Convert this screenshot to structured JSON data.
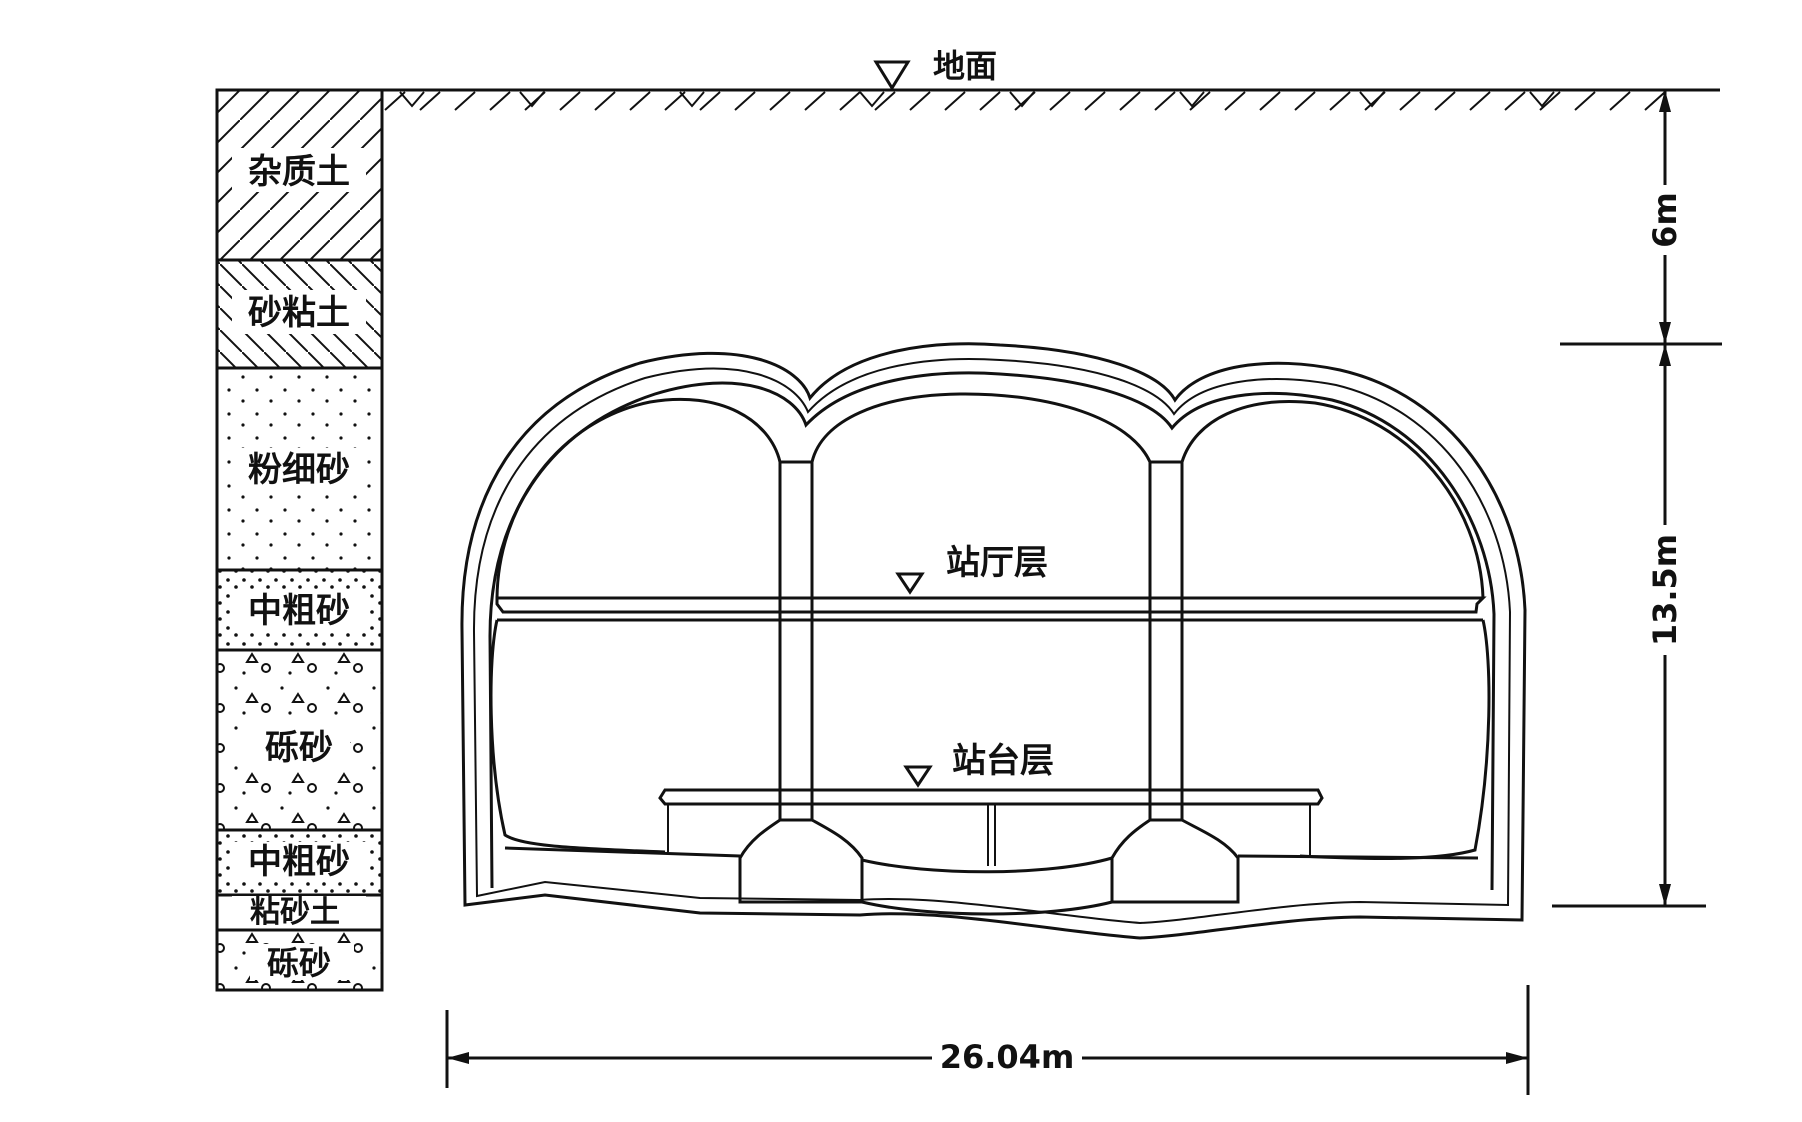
{
  "labels": {
    "ground": "地面",
    "concourse": "站厅层",
    "platform": "站台层",
    "depth_top": "6m",
    "depth_structure": "13.5m",
    "width": "26.04m"
  },
  "soil_layers": [
    {
      "name": "杂质土",
      "pattern": "hatch-forward"
    },
    {
      "name": "砂粘土",
      "pattern": "hatch-back"
    },
    {
      "name": "粉细砂",
      "pattern": "dots"
    },
    {
      "name": "中粗砂",
      "pattern": "dots-dense"
    },
    {
      "name": "砾砂",
      "pattern": "gravel"
    },
    {
      "name": "中粗砂",
      "pattern": "dots-dense"
    },
    {
      "name": "粘砂土",
      "pattern": "plain"
    },
    {
      "name": "砾砂",
      "pattern": "gravel"
    }
  ],
  "colors": {
    "ink": "#111111",
    "background": "#ffffff"
  }
}
